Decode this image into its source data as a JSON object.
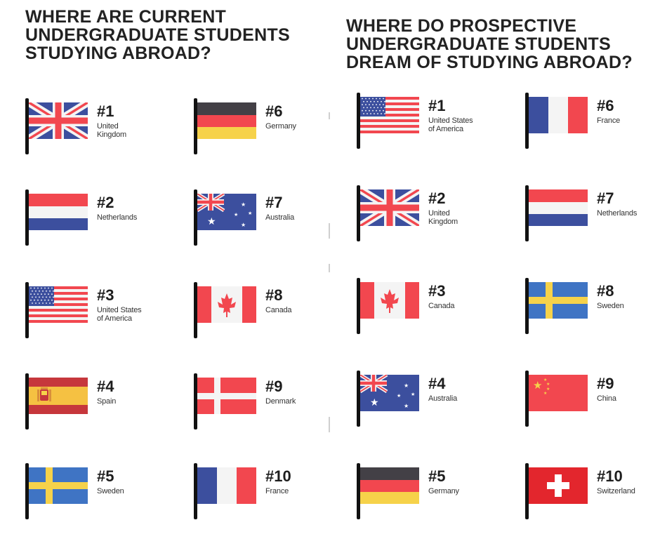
{
  "left": {
    "title_lines": [
      "WHERE ARE CURRENT",
      "UNDERGRADUATE STUDENTS",
      "STUDYING ABROAD?"
    ],
    "items": [
      {
        "rank": "#1",
        "name": "United\nKingdom",
        "flag": "uk-flag"
      },
      {
        "rank": "#2",
        "name": "Netherlands",
        "flag": "netherlands-flag"
      },
      {
        "rank": "#3",
        "name": "United States\nof America",
        "flag": "usa-flag"
      },
      {
        "rank": "#4",
        "name": "Spain",
        "flag": "spain-flag"
      },
      {
        "rank": "#5",
        "name": "Sweden",
        "flag": "sweden-flag"
      },
      {
        "rank": "#6",
        "name": "Germany",
        "flag": "germany-flag"
      },
      {
        "rank": "#7",
        "name": "Australia",
        "flag": "australia-flag"
      },
      {
        "rank": "#8",
        "name": "Canada",
        "flag": "canada-flag"
      },
      {
        "rank": "#9",
        "name": "Denmark",
        "flag": "denmark-flag"
      },
      {
        "rank": "#10",
        "name": "France",
        "flag": "france-flag"
      }
    ]
  },
  "right": {
    "title_lines": [
      "WHERE DO PROSPECTIVE",
      "UNDERGRADUATE STUDENTS",
      "DREAM OF STUDYING ABROAD?"
    ],
    "items": [
      {
        "rank": "#1",
        "name": "United States\nof America",
        "flag": "usa-flag"
      },
      {
        "rank": "#2",
        "name": "United\nKingdom",
        "flag": "uk-flag"
      },
      {
        "rank": "#3",
        "name": "Canada",
        "flag": "canada-flag"
      },
      {
        "rank": "#4",
        "name": "Australia",
        "flag": "australia-flag"
      },
      {
        "rank": "#5",
        "name": "Germany",
        "flag": "germany-flag"
      },
      {
        "rank": "#6",
        "name": "France",
        "flag": "france-flag"
      },
      {
        "rank": "#7",
        "name": "Netherlands",
        "flag": "netherlands-flag"
      },
      {
        "rank": "#8",
        "name": "Sweden",
        "flag": "sweden-flag"
      },
      {
        "rank": "#9",
        "name": "China",
        "flag": "china-flag"
      },
      {
        "rank": "#10",
        "name": "Switzerland",
        "flag": "switzerland-flag"
      }
    ]
  },
  "colors": {
    "red": "#f2474f",
    "blue": "#3c4f9e",
    "white": "#f4f4f4",
    "dark": "#434046",
    "yellow": "#f6d24a",
    "sweden_blue": "#3f74c4",
    "spain_red": "#c6373c",
    "spain_yellow": "#f5c142",
    "pole": "#111111"
  }
}
